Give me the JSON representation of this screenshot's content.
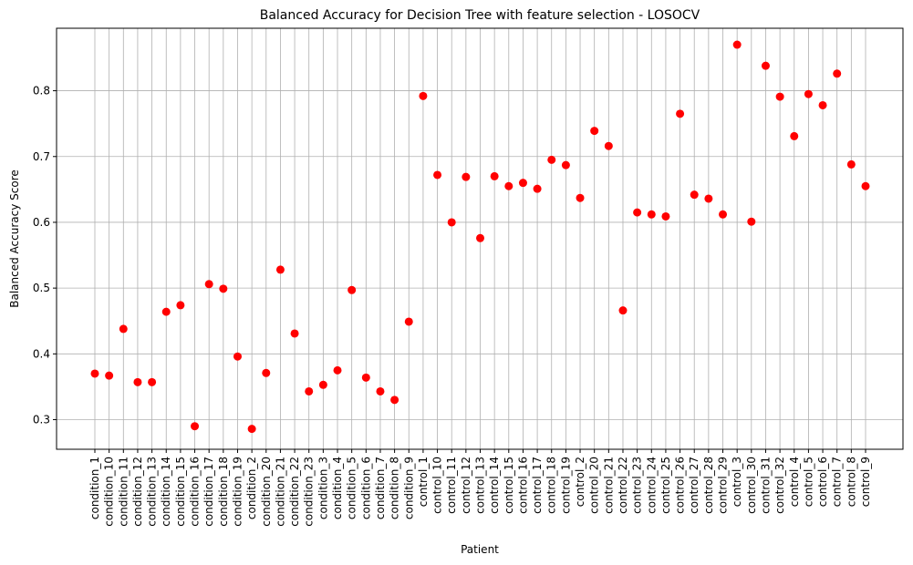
{
  "chart_data": {
    "type": "scatter",
    "title": "Balanced Accuracy for Decision Tree with feature selection - LOSOCV",
    "xlabel": "Patient",
    "ylabel": "Balanced Accuracy Score",
    "ylim": [
      0.255,
      0.895
    ],
    "yticks": [
      0.3,
      0.4,
      0.5,
      0.6,
      0.7,
      0.8
    ],
    "ytick_labels": [
      "0.3",
      "0.4",
      "0.5",
      "0.6",
      "0.7",
      "0.8"
    ],
    "grid": true,
    "marker_color": "#ff0000",
    "x": [
      "condition_1",
      "condition_10",
      "condition_11",
      "condition_12",
      "condition_13",
      "condition_14",
      "condition_15",
      "condition_16",
      "condition_17",
      "condition_18",
      "condition_19",
      "condition_2",
      "condition_20",
      "condition_21",
      "condition_22",
      "condition_23",
      "condition_3",
      "condition_4",
      "condition_5",
      "condition_6",
      "condition_7",
      "condition_8",
      "condition_9",
      "control_1",
      "control_10",
      "control_11",
      "control_12",
      "control_13",
      "control_14",
      "control_15",
      "control_16",
      "control_17",
      "control_18",
      "control_19",
      "control_2",
      "control_20",
      "control_21",
      "control_22",
      "control_23",
      "control_24",
      "control_25",
      "control_26",
      "control_27",
      "control_28",
      "control_29",
      "control_3",
      "control_30",
      "control_31",
      "control_32",
      "control_4",
      "control_5",
      "control_6",
      "control_7",
      "control_8",
      "control_9"
    ],
    "y": [
      0.37,
      0.367,
      0.438,
      0.357,
      0.357,
      0.464,
      0.474,
      0.29,
      0.506,
      0.499,
      0.396,
      0.286,
      0.371,
      0.528,
      0.431,
      0.343,
      0.353,
      0.375,
      0.497,
      0.364,
      0.343,
      0.33,
      0.449,
      0.792,
      0.672,
      0.6,
      0.669,
      0.576,
      0.67,
      0.655,
      0.66,
      0.651,
      0.695,
      0.687,
      0.637,
      0.739,
      0.716,
      0.466,
      0.615,
      0.612,
      0.609,
      0.765,
      0.642,
      0.636,
      0.612,
      0.87,
      0.601,
      0.838,
      0.791,
      0.731,
      0.795,
      0.778,
      0.826,
      0.688,
      0.655
    ]
  }
}
